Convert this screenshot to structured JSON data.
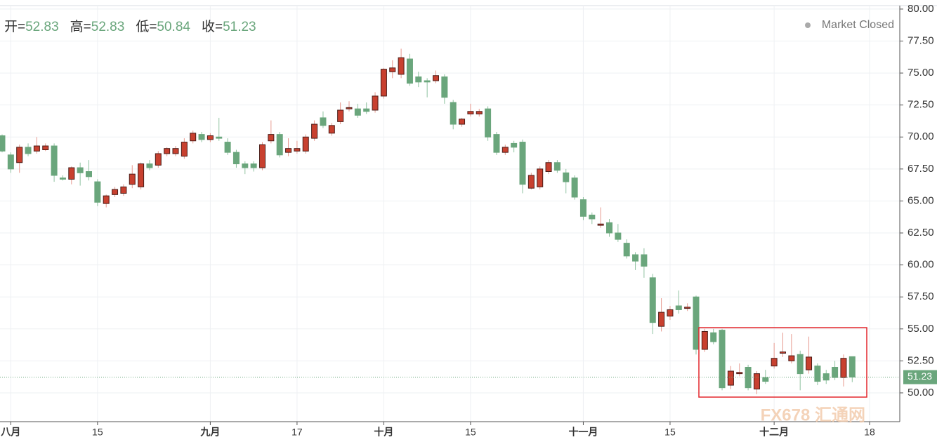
{
  "chart_data": {
    "type": "candlestick",
    "header": [
      {
        "label": "开="
      },
      {
        "label": "高="
      },
      {
        "label": "低="
      },
      {
        "label": "收="
      }
    ],
    "status": "Market Closed",
    "watermark": "FX678 汇通网",
    "up_color": "#c8402f",
    "down_color": "#6aa67c",
    "categories": [
      null,
      "八月",
      null,
      null,
      null,
      null,
      null,
      null,
      null,
      null,
      null,
      "15",
      null,
      null,
      null,
      null,
      null,
      null,
      null,
      null,
      null,
      null,
      null,
      null,
      "九月",
      null,
      null,
      null,
      null,
      null,
      null,
      null,
      null,
      null,
      "17",
      null,
      null,
      null,
      null,
      null,
      null,
      null,
      null,
      null,
      "十月",
      null,
      null,
      null,
      null,
      null,
      null,
      null,
      null,
      null,
      "15",
      null,
      null,
      null,
      null,
      null,
      null,
      null,
      null,
      null,
      null,
      null,
      null,
      "十一月",
      null,
      null,
      null,
      null,
      null,
      null,
      null,
      null,
      null,
      "15",
      null,
      null,
      null,
      null,
      null,
      null,
      null,
      null,
      null,
      null,
      null,
      "十二月",
      null,
      null,
      null,
      null,
      null,
      null,
      null,
      null,
      null,
      null,
      "18"
    ],
    "open": [
      70.1,
      68.6,
      68.0,
      69.2,
      68.9,
      69.0,
      69.3,
      66.8,
      66.7,
      67.6,
      67.3,
      66.5,
      64.8,
      65.5,
      65.6,
      66.3,
      66.1,
      67.9,
      67.8,
      68.7,
      68.7,
      68.5,
      69.7,
      70.2,
      69.8,
      70.0,
      69.6,
      68.8,
      67.9,
      67.9,
      67.6,
      69.7,
      70.2,
      68.8,
      68.9,
      68.9,
      69.9,
      71.5,
      70.3,
      71.2,
      72.2,
      72.2,
      72.2,
      72.1,
      73.2,
      75.1,
      74.9,
      76.1,
      74.7,
      74.4,
      74.4,
      74.7,
      72.7,
      71.0,
      71.8,
      71.8,
      72.2,
      70.2,
      68.8,
      69.5,
      69.6,
      66.0,
      66.1,
      67.3,
      68.0,
      67.2,
      66.8,
      65.1,
      63.9,
      63.1,
      63.3,
      62.5,
      61.7,
      60.8,
      60.8,
      59.0,
      55.2,
      56.0,
      56.8,
      56.6,
      57.5,
      53.4,
      54.7,
      54.9,
      50.6,
      51.5,
      52.0,
      50.3,
      51.2,
      52.1,
      53.1,
      52.5,
      53.0,
      51.8,
      52.1,
      51.5,
      52.0,
      51.2,
      52.83,
      null,
      null
    ],
    "high": [
      70.2,
      68.8,
      69.4,
      69.5,
      70.0,
      69.5,
      69.5,
      67.0,
      67.7,
      68.0,
      68.2,
      66.7,
      65.5,
      66.1,
      66.3,
      67.8,
      68.0,
      68.2,
      68.9,
      69.2,
      69.3,
      69.9,
      70.5,
      70.4,
      70.3,
      71.5,
      69.9,
      69.0,
      68.1,
      68.1,
      69.6,
      71.3,
      70.4,
      69.9,
      69.7,
      70.2,
      71.3,
      72.0,
      71.1,
      72.7,
      72.8,
      72.6,
      72.7,
      73.5,
      75.4,
      76.0,
      76.9,
      76.5,
      75.1,
      74.6,
      75.2,
      74.9,
      72.9,
      71.5,
      72.6,
      72.2,
      72.4,
      70.4,
      69.4,
      69.7,
      69.8,
      67.2,
      67.7,
      68.2,
      68.2,
      67.5,
      67.0,
      65.3,
      64.1,
      64.5,
      63.6,
      63.2,
      62.0,
      61.0,
      61.3,
      59.3,
      57.4,
      56.8,
      58.0,
      57.0,
      57.6,
      55.0,
      55.0,
      55.0,
      52.1,
      52.3,
      52.2,
      51.7,
      51.8,
      53.9,
      54.7,
      54.6,
      53.3,
      54.4,
      52.3,
      51.8,
      52.5,
      53.0,
      52.83,
      null,
      null
    ],
    "low": [
      68.8,
      67.2,
      67.2,
      68.5,
      68.7,
      68.9,
      66.5,
      66.6,
      66.3,
      66.2,
      66.6,
      64.6,
      64.5,
      65.3,
      65.4,
      66.0,
      65.9,
      67.4,
      67.6,
      68.5,
      68.5,
      68.3,
      69.5,
      69.6,
      69.6,
      69.7,
      68.6,
      67.6,
      67.1,
      67.3,
      67.4,
      69.5,
      68.4,
      68.5,
      68.7,
      68.7,
      69.7,
      70.7,
      70.1,
      71.0,
      72.0,
      71.5,
      71.8,
      71.9,
      73.0,
      74.6,
      74.6,
      74.0,
      73.9,
      73.1,
      74.2,
      72.6,
      70.6,
      70.8,
      71.6,
      71.6,
      69.7,
      68.6,
      68.6,
      68.8,
      65.6,
      65.9,
      65.9,
      67.1,
      67.2,
      65.6,
      65.1,
      63.5,
      63.2,
      62.9,
      62.2,
      61.8,
      60.5,
      59.6,
      59.0,
      54.6,
      54.8,
      55.7,
      56.2,
      56.4,
      53.0,
      53.2,
      53.8,
      50.2,
      50.3,
      51.3,
      50.2,
      49.9,
      50.7,
      51.9,
      52.8,
      52.3,
      50.2,
      51.5,
      50.6,
      50.7,
      51.0,
      50.5,
      50.84,
      null,
      null
    ],
    "close": [
      68.9,
      67.5,
      69.2,
      68.7,
      69.3,
      69.3,
      67.0,
      66.7,
      67.6,
      67.2,
      66.9,
      64.9,
      65.4,
      65.9,
      66.1,
      67.1,
      67.9,
      67.6,
      68.7,
      69.1,
      69.1,
      69.6,
      70.3,
      69.8,
      70.1,
      69.9,
      68.8,
      67.9,
      67.6,
      67.6,
      69.4,
      70.2,
      68.6,
      69.1,
      69.1,
      70.0,
      71.0,
      70.9,
      70.9,
      72.1,
      72.3,
      71.7,
      72.0,
      73.2,
      75.3,
      75.4,
      76.2,
      74.2,
      74.3,
      74.3,
      74.8,
      73.1,
      71.0,
      71.4,
      72.0,
      72.0,
      70.0,
      68.8,
      69.2,
      69.2,
      66.3,
      67.0,
      67.5,
      68.0,
      67.4,
      66.5,
      65.3,
      63.8,
      63.6,
      63.2,
      62.5,
      62.0,
      60.7,
      60.3,
      59.9,
      55.5,
      56.3,
      56.5,
      56.5,
      56.7,
      53.4,
      54.8,
      54.0,
      50.4,
      51.7,
      51.6,
      50.4,
      51.5,
      50.9,
      52.7,
      53.2,
      52.9,
      51.5,
      52.8,
      50.9,
      51.0,
      51.2,
      52.7,
      51.23,
      null,
      null
    ],
    "ylim": [
      47.75,
      80.27
    ],
    "yticks": [
      {
        "value": 50,
        "label": "50.00"
      },
      {
        "value": 52.5,
        "label": "52.50"
      },
      {
        "value": 55,
        "label": "55.00"
      },
      {
        "value": 57.5,
        "label": "57.50"
      },
      {
        "value": 60,
        "label": "60.00"
      },
      {
        "value": 62.5,
        "label": "62.50"
      },
      {
        "value": 65,
        "label": "65.00"
      },
      {
        "value": 67.5,
        "label": "67.50"
      },
      {
        "value": 70,
        "label": "70.00"
      },
      {
        "value": 72.5,
        "label": "72.50"
      },
      {
        "value": 75,
        "label": "75.00"
      },
      {
        "value": 77.5,
        "label": "77.50"
      },
      {
        "value": 80,
        "label": "80.00"
      }
    ],
    "grid": true
  }
}
